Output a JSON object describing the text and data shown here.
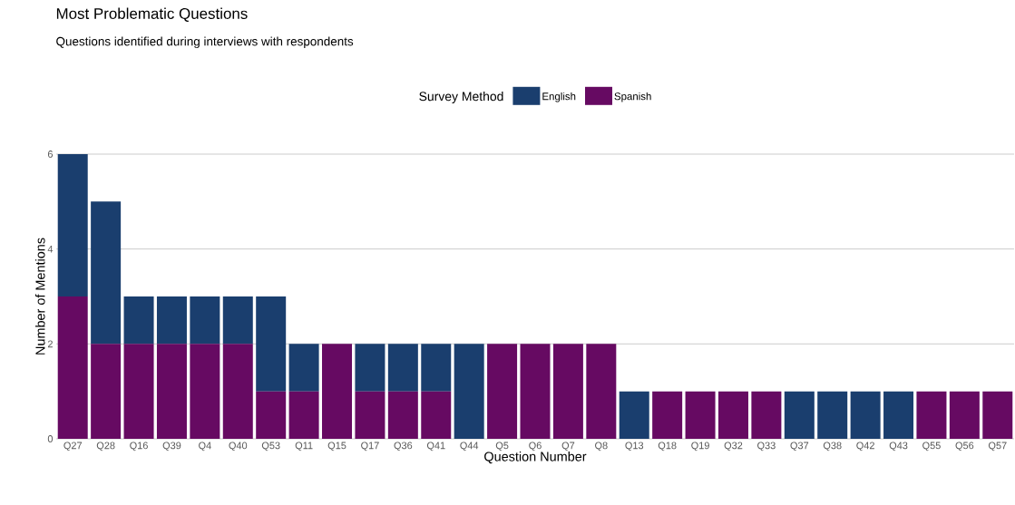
{
  "chart_data": {
    "type": "bar",
    "title": "Most Problematic Questions",
    "subtitle": "Questions identified during interviews with respondents",
    "xlabel": "Question Number",
    "ylabel": "Number of Mentions",
    "legend_title": "Survey Method",
    "categories": [
      "Q27",
      "Q28",
      "Q16",
      "Q39",
      "Q4",
      "Q40",
      "Q53",
      "Q11",
      "Q15",
      "Q17",
      "Q36",
      "Q41",
      "Q44",
      "Q5",
      "Q6",
      "Q7",
      "Q8",
      "Q13",
      "Q18",
      "Q19",
      "Q32",
      "Q33",
      "Q37",
      "Q38",
      "Q42",
      "Q43",
      "Q55",
      "Q56",
      "Q57"
    ],
    "stacked": true,
    "series": [
      {
        "name": "Spanish",
        "color": "#660a62",
        "values": [
          3,
          2,
          2,
          2,
          2,
          2,
          1,
          1,
          2,
          1,
          1,
          1,
          0,
          2,
          2,
          2,
          2,
          0,
          1,
          1,
          1,
          1,
          0,
          0,
          0,
          0,
          1,
          1,
          1
        ]
      },
      {
        "name": "English",
        "color": "#1a3e6e",
        "values": [
          3,
          3,
          1,
          1,
          1,
          1,
          2,
          1,
          0,
          1,
          1,
          1,
          2,
          0,
          0,
          0,
          0,
          1,
          0,
          0,
          0,
          0,
          1,
          1,
          1,
          1,
          0,
          0,
          0
        ]
      }
    ],
    "ylim": [
      0,
      6
    ],
    "yticks": [
      0,
      2,
      4,
      6
    ],
    "grid": "y",
    "legend": "top"
  }
}
